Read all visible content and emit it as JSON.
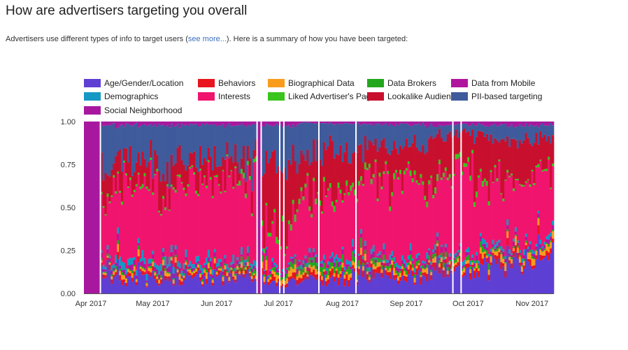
{
  "page": {
    "title": "How are advertisers targeting you overall",
    "intro_before": "Advertisers use different types of info to target users (",
    "intro_link": "see more...",
    "intro_after": "). Here is a summary of how you have been targeted:"
  },
  "chart_data": {
    "type": "bar",
    "stacked": true,
    "normalized": true,
    "ylim": [
      0,
      1
    ],
    "y_ticks": [
      "0.00",
      "0.25",
      "0.50",
      "0.75",
      "1.00"
    ],
    "x_ticks": [
      "Apr 2017",
      "May 2017",
      "Jun 2017",
      "Jul 2017",
      "Aug 2017",
      "Sep 2017",
      "Oct 2017",
      "Nov 2017"
    ],
    "x_range": [
      "2017-04-01",
      "2017-11-15"
    ],
    "legend_position": "top",
    "series": [
      {
        "name": "Age/Gender/Location",
        "color": "#5e3fd3"
      },
      {
        "name": "Behaviors",
        "color": "#e8141e"
      },
      {
        "name": "Biographical Data",
        "color": "#f99c1c"
      },
      {
        "name": "Data Brokers",
        "color": "#22a61e"
      },
      {
        "name": "Data from Mobile",
        "color": "#b0159d"
      },
      {
        "name": "Demographics",
        "color": "#1598c4"
      },
      {
        "name": "Interests",
        "color": "#f0146e"
      },
      {
        "name": "Liked Advertiser's Page",
        "color": "#3ac41e"
      },
      {
        "name": "Lookalike Audience",
        "color": "#c8102e"
      },
      {
        "name": "PII-based targeting",
        "color": "#3f5b9c"
      },
      {
        "name": "Social Neighborhood",
        "color": "#a8189e"
      }
    ],
    "periods": [
      {
        "start": "2017-04-01",
        "end": "2017-04-09",
        "shares": [
          0,
          0,
          0,
          0,
          0,
          0,
          0,
          0,
          0,
          0,
          1.0
        ]
      },
      {
        "start": "2017-04-09",
        "end": "2017-04-14",
        "shares": [
          0.11,
          0.02,
          0.01,
          0.01,
          0.02,
          0.02,
          0.34,
          0.01,
          0.17,
          0.27,
          0.02
        ]
      },
      {
        "start": "2017-04-14",
        "end": "2017-05-15",
        "shares": [
          0.09,
          0.02,
          0.02,
          0.01,
          0.02,
          0.03,
          0.44,
          0.01,
          0.14,
          0.2,
          0.02
        ]
      },
      {
        "start": "2017-05-15",
        "end": "2017-06-15",
        "shares": [
          0.09,
          0.02,
          0.02,
          0.01,
          0.02,
          0.03,
          0.48,
          0.01,
          0.11,
          0.19,
          0.02
        ]
      },
      {
        "start": "2017-06-15",
        "end": "2017-06-24",
        "shares": [
          0.1,
          0.02,
          0.02,
          0.02,
          0.02,
          0.03,
          0.45,
          0.02,
          0.1,
          0.2,
          0.02
        ]
      },
      {
        "start": "2017-06-24",
        "end": "2017-06-26",
        "shares": [
          0,
          0,
          0,
          0,
          0,
          0,
          0,
          0,
          0,
          0,
          1.0
        ]
      },
      {
        "start": "2017-06-26",
        "end": "2017-07-15",
        "shares": [
          0.06,
          0.02,
          0.03,
          0.02,
          0.02,
          0.01,
          0.2,
          0.02,
          0.4,
          0.2,
          0.02
        ]
      },
      {
        "start": "2017-07-15",
        "end": "2017-08-15",
        "shares": [
          0.08,
          0.03,
          0.02,
          0.03,
          0.02,
          0.02,
          0.35,
          0.02,
          0.25,
          0.17,
          0.01
        ]
      },
      {
        "start": "2017-08-15",
        "end": "2017-09-15",
        "shares": [
          0.1,
          0.03,
          0.02,
          0.02,
          0.02,
          0.02,
          0.45,
          0.02,
          0.18,
          0.12,
          0.02
        ]
      },
      {
        "start": "2017-09-15",
        "end": "2017-10-15",
        "shares": [
          0.12,
          0.03,
          0.02,
          0.02,
          0.02,
          0.02,
          0.45,
          0.02,
          0.22,
          0.06,
          0.02
        ]
      },
      {
        "start": "2017-10-15",
        "end": "2017-11-15",
        "shares": [
          0.2,
          0.03,
          0.03,
          0.01,
          0.02,
          0.02,
          0.37,
          0.01,
          0.2,
          0.09,
          0.02
        ]
      }
    ],
    "gaps": [
      "2017-04-09",
      "2017-06-24",
      "2017-06-26",
      "2017-07-05",
      "2017-07-07",
      "2017-07-24",
      "2017-08-11",
      "2017-09-27",
      "2017-10-01"
    ]
  }
}
